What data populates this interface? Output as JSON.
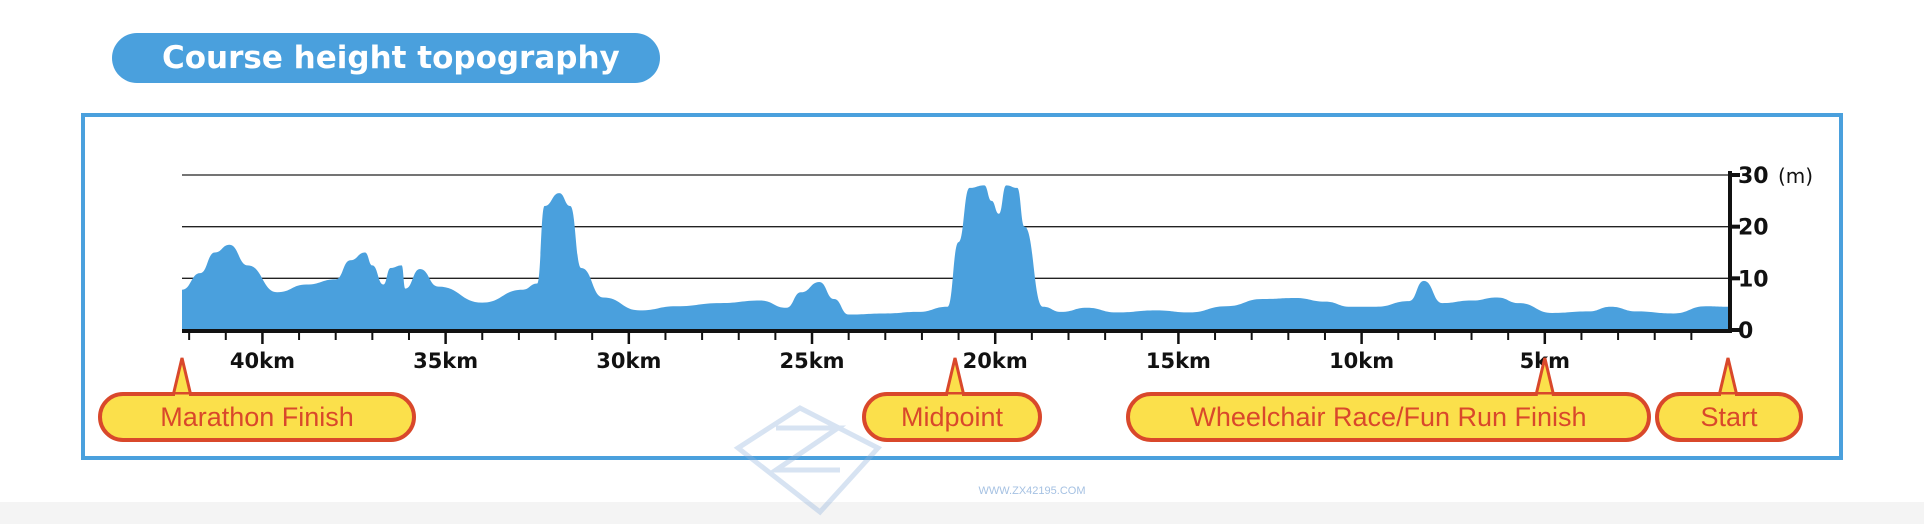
{
  "title": "Course height topography",
  "colors": {
    "accent": "#4aa0dd",
    "callout_fill": "#fbe04b",
    "callout_stroke": "#d9482b",
    "callout_text": "#d9482b",
    "axis": "#111111"
  },
  "chart_data": {
    "type": "area",
    "title": "Course height topography",
    "x_unit": "km",
    "x_reversed": true,
    "xlim": [
      0,
      42.195
    ],
    "ylim": [
      0,
      30
    ],
    "y_unit_label": "(m)",
    "y_ticks": [
      0,
      10,
      20,
      30
    ],
    "y_tick_labels": [
      "0",
      "10",
      "20",
      "30"
    ],
    "x_ticks": [
      5,
      10,
      15,
      20,
      25,
      30,
      35,
      40
    ],
    "x_tick_labels": [
      "5km",
      "10km",
      "15km",
      "20km",
      "25km",
      "30km",
      "35km",
      "40km"
    ],
    "grid": true,
    "series": [
      {
        "values": [
          [
            0,
            4.5
          ],
          [
            0.6,
            4.6
          ],
          [
            1.5,
            3.2
          ],
          [
            2.5,
            3.6
          ],
          [
            3.2,
            4.5
          ],
          [
            3.8,
            3.6
          ],
          [
            4.8,
            3.3
          ],
          [
            5.7,
            5.2
          ],
          [
            6.3,
            6.3
          ],
          [
            7.0,
            5.7
          ],
          [
            7.8,
            5.2
          ],
          [
            8.3,
            9.5
          ],
          [
            8.7,
            5.6
          ],
          [
            9.6,
            4.5
          ],
          [
            10.3,
            4.5
          ],
          [
            11.0,
            5.5
          ],
          [
            11.8,
            6.2
          ],
          [
            12.7,
            6.0
          ],
          [
            13.7,
            4.6
          ],
          [
            14.7,
            3.4
          ],
          [
            15.6,
            3.8
          ],
          [
            16.7,
            3.4
          ],
          [
            17.5,
            4.3
          ],
          [
            18.2,
            3.5
          ],
          [
            18.7,
            4.5
          ],
          [
            19.2,
            20
          ],
          [
            19.4,
            27.5
          ],
          [
            19.7,
            28.0
          ],
          [
            19.9,
            22.5
          ],
          [
            20.1,
            25
          ],
          [
            20.3,
            28.0
          ],
          [
            20.7,
            27.5
          ],
          [
            21.0,
            17
          ],
          [
            21.3,
            4.5
          ],
          [
            22.1,
            3.5
          ],
          [
            23.0,
            3.2
          ],
          [
            24.0,
            3.0
          ],
          [
            24.4,
            6
          ],
          [
            24.8,
            9.3
          ],
          [
            25.3,
            7.3
          ],
          [
            25.7,
            4.3
          ],
          [
            26.4,
            5.7
          ],
          [
            27.5,
            5.2
          ],
          [
            28.7,
            4.6
          ],
          [
            29.7,
            3.8
          ],
          [
            30.7,
            6.3
          ],
          [
            31.3,
            12
          ],
          [
            31.6,
            24
          ],
          [
            31.9,
            26.5
          ],
          [
            32.3,
            24
          ],
          [
            32.5,
            9
          ],
          [
            32.9,
            7.8
          ],
          [
            34.0,
            5.3
          ],
          [
            35.2,
            8.4
          ],
          [
            35.7,
            11.8
          ],
          [
            36.1,
            8.0
          ],
          [
            36.2,
            12.5
          ],
          [
            36.5,
            12.0
          ],
          [
            36.7,
            8.8
          ],
          [
            37.0,
            12.5
          ],
          [
            37.2,
            15.0
          ],
          [
            37.6,
            13.5
          ],
          [
            38.0,
            9.8
          ],
          [
            38.8,
            8.8
          ],
          [
            39.6,
            7.3
          ],
          [
            40.4,
            12.5
          ],
          [
            40.9,
            16.5
          ],
          [
            41.3,
            15.0
          ],
          [
            41.7,
            11.0
          ],
          [
            42.195,
            7.8
          ]
        ]
      }
    ],
    "annotations": [
      {
        "label": "Start",
        "km": 0
      },
      {
        "label": "Wheelchair Race/Fun Run Finish",
        "km": 5
      },
      {
        "label": "Midpoint",
        "km": 21.0975
      },
      {
        "label": "Marathon Finish",
        "km": 42.195
      }
    ]
  },
  "watermark": {
    "url": "WWW.ZX42195.COM"
  }
}
